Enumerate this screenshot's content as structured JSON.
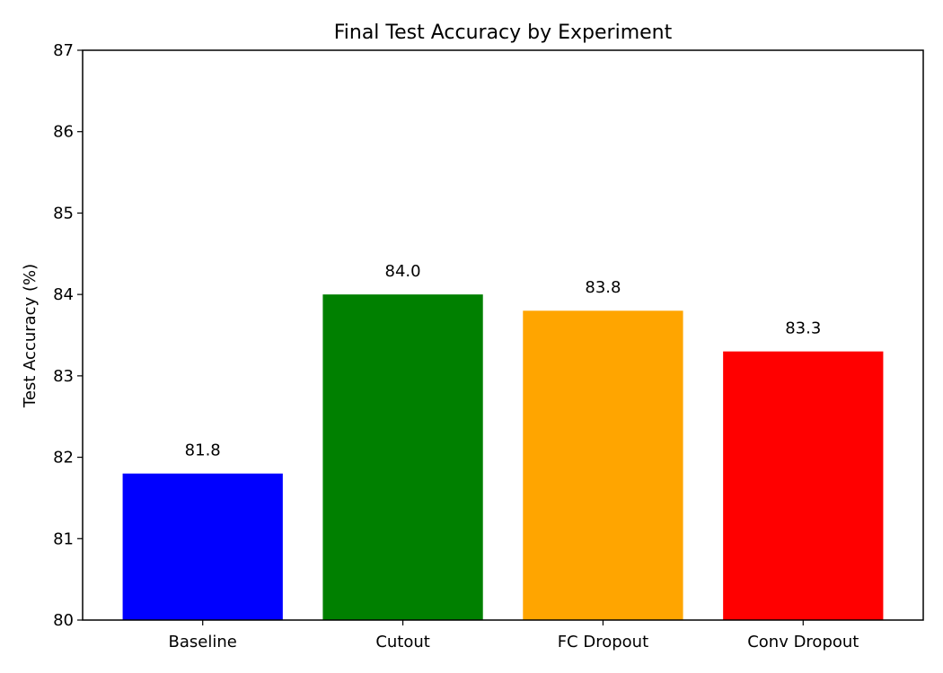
{
  "chart_data": {
    "type": "bar",
    "title": "Final Test Accuracy by Experiment",
    "xlabel": "",
    "ylabel": "Test Accuracy (%)",
    "categories": [
      "Baseline",
      "Cutout",
      "FC Dropout",
      "Conv Dropout"
    ],
    "values": [
      81.8,
      84.0,
      83.8,
      83.3
    ],
    "value_labels": [
      "81.8",
      "84.0",
      "83.8",
      "83.3"
    ],
    "colors": [
      "#0000ff",
      "#008000",
      "#ffa500",
      "#ff0000"
    ],
    "ylim": [
      80,
      87
    ],
    "yticks": [
      80,
      81,
      82,
      83,
      84,
      85,
      86,
      87
    ],
    "ytick_labels": [
      "80",
      "81",
      "82",
      "83",
      "84",
      "85",
      "86",
      "87"
    ],
    "grid": false,
    "legend": "none"
  }
}
